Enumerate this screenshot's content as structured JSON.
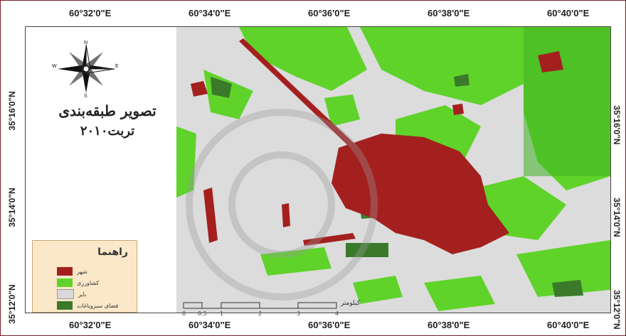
{
  "map": {
    "title_line1": "تصویر طبقه‌بندی",
    "title_line2": "تربت۲۰۱۰",
    "top_longitudes": [
      "60°32'0\"E",
      "60°34'0\"E",
      "60°36'0\"E",
      "60°38'0\"E",
      "60°40'0\"E"
    ],
    "bottom_longitudes": [
      "60°32'0\"E",
      "60°34'0\"E",
      "60°36'0\"E",
      "60°38'0\"E",
      "60°40'0\"E"
    ],
    "left_latitudes": [
      "35°16'0\"N",
      "35°14'0\"N",
      "35°12'0\"N"
    ],
    "right_latitudes": [
      "35°16'0\"N",
      "35°14'0\"N",
      "35°12'0\"N"
    ],
    "compass": {
      "n": "N",
      "s": "S",
      "e": "E",
      "w": "W"
    },
    "legend": {
      "title": "راهنما",
      "items": [
        {
          "label": "شهر",
          "color": "#a3201f"
        },
        {
          "label": "کشاورزی",
          "color": "#5fd32a"
        },
        {
          "label": "بایر",
          "color": "#d9d9d9"
        },
        {
          "label": "فضای سبزوباغات",
          "color": "#3b7a2a"
        }
      ]
    },
    "scale": {
      "unit": "کیلومتر",
      "ticks": [
        "0",
        "0.5",
        "1",
        "2",
        "3",
        "4"
      ]
    },
    "colors": {
      "urban": "#a3201f",
      "agriculture": "#5fd32a",
      "barren": "#d9d9d9",
      "green_space": "#3b7a2a",
      "frame": "#7a1f2b",
      "legend_bg": "#fbe8c8"
    }
  }
}
